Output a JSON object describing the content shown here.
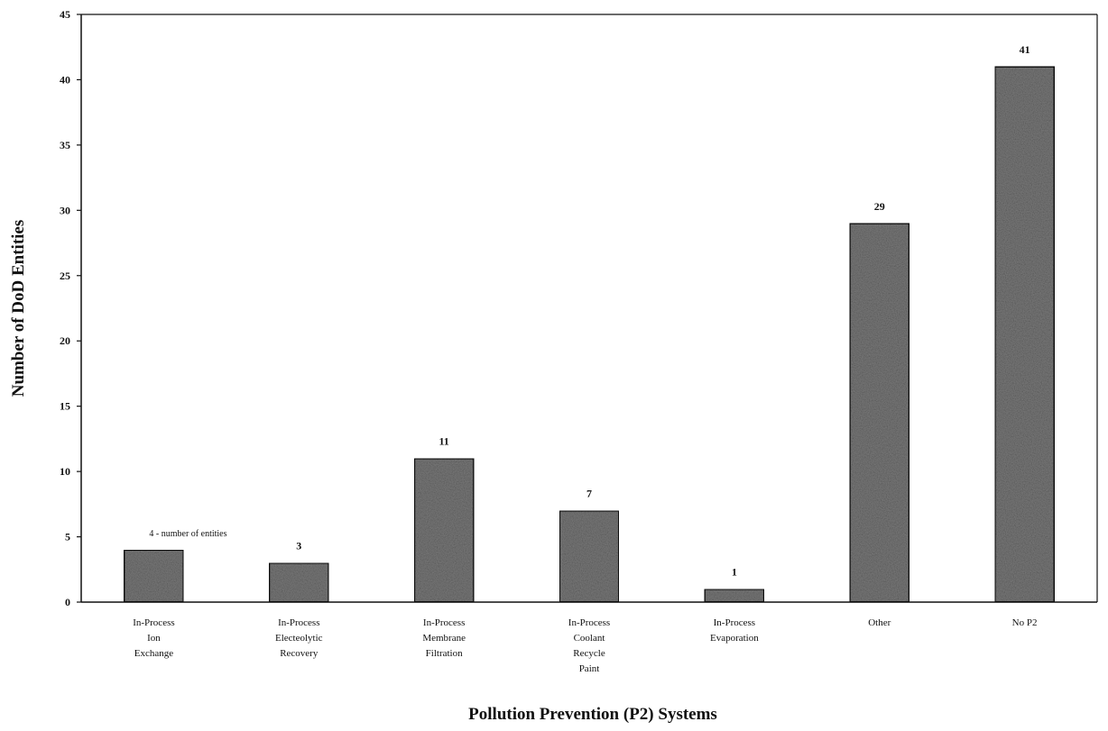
{
  "chart_data": {
    "type": "bar",
    "title": "",
    "xlabel": "Pollution Prevention (P2) Systems",
    "ylabel": "Number of DoD Entities",
    "ylim": [
      0,
      45
    ],
    "yticks": [
      0,
      5,
      10,
      15,
      20,
      25,
      30,
      35,
      40,
      45
    ],
    "grid": false,
    "legend": "none",
    "categories": [
      [
        "In-Process",
        "Ion",
        "Exchange"
      ],
      [
        "In-Process",
        "Electeolytic",
        "Recovery"
      ],
      [
        "In-Process",
        "Membrane",
        "Filtration"
      ],
      [
        "In-Process",
        "Coolant",
        "Recycle",
        "Paint"
      ],
      [
        "In-Process",
        "Evaporation"
      ],
      [
        "Other"
      ],
      [
        "No P2"
      ]
    ],
    "values": [
      4,
      3,
      11,
      7,
      1,
      29,
      41
    ],
    "data_labels": [
      "4 - number of entities",
      "3",
      "11",
      "7",
      "1",
      "29",
      "41"
    ],
    "bar_color": "#7a7a7a",
    "bar_stroke": "#111111"
  }
}
